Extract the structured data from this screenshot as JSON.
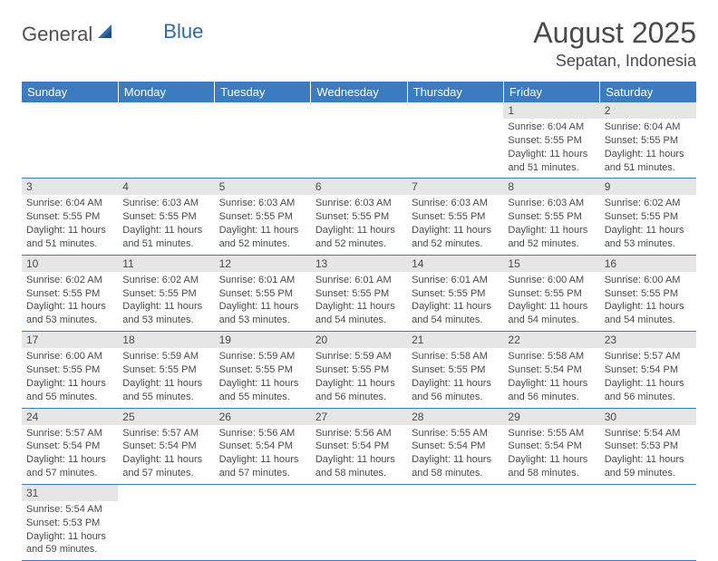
{
  "logo": {
    "text1": "General",
    "text2": "Blue"
  },
  "title": "August 2025",
  "location": "Sepatan, Indonesia",
  "colors": {
    "header_bg": "#3a7cbf",
    "header_text": "#ffffff",
    "daynum_bg": "#e6e6e6",
    "body_text": "#4a4a4a",
    "row_border": "#3a7cbf",
    "logo_accent": "#2f6aa8"
  },
  "weekdays": [
    "Sunday",
    "Monday",
    "Tuesday",
    "Wednesday",
    "Thursday",
    "Friday",
    "Saturday"
  ],
  "first_weekday_index": 5,
  "days": [
    {
      "n": 1,
      "sunrise": "6:04 AM",
      "sunset": "5:55 PM",
      "daylight": "11 hours and 51 minutes."
    },
    {
      "n": 2,
      "sunrise": "6:04 AM",
      "sunset": "5:55 PM",
      "daylight": "11 hours and 51 minutes."
    },
    {
      "n": 3,
      "sunrise": "6:04 AM",
      "sunset": "5:55 PM",
      "daylight": "11 hours and 51 minutes."
    },
    {
      "n": 4,
      "sunrise": "6:03 AM",
      "sunset": "5:55 PM",
      "daylight": "11 hours and 51 minutes."
    },
    {
      "n": 5,
      "sunrise": "6:03 AM",
      "sunset": "5:55 PM",
      "daylight": "11 hours and 52 minutes."
    },
    {
      "n": 6,
      "sunrise": "6:03 AM",
      "sunset": "5:55 PM",
      "daylight": "11 hours and 52 minutes."
    },
    {
      "n": 7,
      "sunrise": "6:03 AM",
      "sunset": "5:55 PM",
      "daylight": "11 hours and 52 minutes."
    },
    {
      "n": 8,
      "sunrise": "6:03 AM",
      "sunset": "5:55 PM",
      "daylight": "11 hours and 52 minutes."
    },
    {
      "n": 9,
      "sunrise": "6:02 AM",
      "sunset": "5:55 PM",
      "daylight": "11 hours and 53 minutes."
    },
    {
      "n": 10,
      "sunrise": "6:02 AM",
      "sunset": "5:55 PM",
      "daylight": "11 hours and 53 minutes."
    },
    {
      "n": 11,
      "sunrise": "6:02 AM",
      "sunset": "5:55 PM",
      "daylight": "11 hours and 53 minutes."
    },
    {
      "n": 12,
      "sunrise": "6:01 AM",
      "sunset": "5:55 PM",
      "daylight": "11 hours and 53 minutes."
    },
    {
      "n": 13,
      "sunrise": "6:01 AM",
      "sunset": "5:55 PM",
      "daylight": "11 hours and 54 minutes."
    },
    {
      "n": 14,
      "sunrise": "6:01 AM",
      "sunset": "5:55 PM",
      "daylight": "11 hours and 54 minutes."
    },
    {
      "n": 15,
      "sunrise": "6:00 AM",
      "sunset": "5:55 PM",
      "daylight": "11 hours and 54 minutes."
    },
    {
      "n": 16,
      "sunrise": "6:00 AM",
      "sunset": "5:55 PM",
      "daylight": "11 hours and 54 minutes."
    },
    {
      "n": 17,
      "sunrise": "6:00 AM",
      "sunset": "5:55 PM",
      "daylight": "11 hours and 55 minutes."
    },
    {
      "n": 18,
      "sunrise": "5:59 AM",
      "sunset": "5:55 PM",
      "daylight": "11 hours and 55 minutes."
    },
    {
      "n": 19,
      "sunrise": "5:59 AM",
      "sunset": "5:55 PM",
      "daylight": "11 hours and 55 minutes."
    },
    {
      "n": 20,
      "sunrise": "5:59 AM",
      "sunset": "5:55 PM",
      "daylight": "11 hours and 56 minutes."
    },
    {
      "n": 21,
      "sunrise": "5:58 AM",
      "sunset": "5:55 PM",
      "daylight": "11 hours and 56 minutes."
    },
    {
      "n": 22,
      "sunrise": "5:58 AM",
      "sunset": "5:54 PM",
      "daylight": "11 hours and 56 minutes."
    },
    {
      "n": 23,
      "sunrise": "5:57 AM",
      "sunset": "5:54 PM",
      "daylight": "11 hours and 56 minutes."
    },
    {
      "n": 24,
      "sunrise": "5:57 AM",
      "sunset": "5:54 PM",
      "daylight": "11 hours and 57 minutes."
    },
    {
      "n": 25,
      "sunrise": "5:57 AM",
      "sunset": "5:54 PM",
      "daylight": "11 hours and 57 minutes."
    },
    {
      "n": 26,
      "sunrise": "5:56 AM",
      "sunset": "5:54 PM",
      "daylight": "11 hours and 57 minutes."
    },
    {
      "n": 27,
      "sunrise": "5:56 AM",
      "sunset": "5:54 PM",
      "daylight": "11 hours and 58 minutes."
    },
    {
      "n": 28,
      "sunrise": "5:55 AM",
      "sunset": "5:54 PM",
      "daylight": "11 hours and 58 minutes."
    },
    {
      "n": 29,
      "sunrise": "5:55 AM",
      "sunset": "5:54 PM",
      "daylight": "11 hours and 58 minutes."
    },
    {
      "n": 30,
      "sunrise": "5:54 AM",
      "sunset": "5:53 PM",
      "daylight": "11 hours and 59 minutes."
    },
    {
      "n": 31,
      "sunrise": "5:54 AM",
      "sunset": "5:53 PM",
      "daylight": "11 hours and 59 minutes."
    }
  ]
}
